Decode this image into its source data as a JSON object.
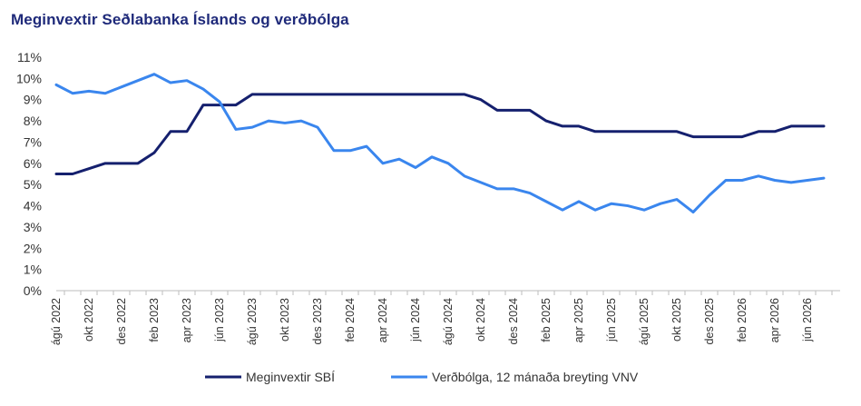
{
  "chart_data": {
    "type": "line",
    "title": "Meginvextir Seðlabanka Íslands og verðbólga",
    "xlabel": "",
    "ylabel": "",
    "ylim": [
      0,
      11
    ],
    "yticks": [
      "0%",
      "1%",
      "2%",
      "3%",
      "4%",
      "5%",
      "6%",
      "7%",
      "8%",
      "9%",
      "10%",
      "11%"
    ],
    "grid": false,
    "legend": "bottom",
    "x": [
      "ágú 2022",
      "sep 2022",
      "okt 2022",
      "nóv 2022",
      "des 2022",
      "jan 2023",
      "feb 2023",
      "mar 2023",
      "apr 2023",
      "maí 2023",
      "jún 2023",
      "júl 2023",
      "ágú 2023",
      "sep 2023",
      "okt 2023",
      "nóv 2023",
      "des 2023",
      "jan 2024",
      "feb 2024",
      "mar 2024",
      "apr 2024",
      "maí 2024",
      "jún 2024",
      "júl 2024",
      "ágú 2024",
      "sep 2024",
      "okt 2024",
      "nóv 2024",
      "des 2024",
      "jan 2025",
      "feb 2025",
      "mar 2025",
      "apr 2025",
      "maí 2025",
      "jún 2025",
      "júl 2025",
      "ágú 2025",
      "sep 2025",
      "okt 2025",
      "nóv 2025",
      "des 2025",
      "jan 2026",
      "feb 2026",
      "mar 2026",
      "apr 2026",
      "maí 2026",
      "jún 2026",
      "júl 2026"
    ],
    "xtick_labels": [
      "ágú 2022",
      "okt 2022",
      "des 2022",
      "feb 2023",
      "apr 2023",
      "jún 2023",
      "ágú 2023",
      "okt 2023",
      "des 2023",
      "feb 2024",
      "apr 2024",
      "jún 2024",
      "ágú 2024",
      "okt 2024",
      "des 2024",
      "feb 2025",
      "apr 2025",
      "jún 2025",
      "ágú 2025",
      "okt 2025",
      "des 2025",
      "feb 2026",
      "apr 2026",
      "jún 2026"
    ],
    "series": [
      {
        "name": "Meginvextir SBÍ",
        "color": "#15206e",
        "values": [
          5.5,
          5.5,
          5.75,
          6.0,
          6.0,
          6.0,
          6.5,
          7.5,
          7.5,
          8.75,
          8.75,
          8.75,
          9.25,
          9.25,
          9.25,
          9.25,
          9.25,
          9.25,
          9.25,
          9.25,
          9.25,
          9.25,
          9.25,
          9.25,
          9.25,
          9.25,
          9.0,
          8.5,
          8.5,
          8.5,
          8.0,
          7.75,
          7.75,
          7.5,
          7.5,
          7.5,
          7.5,
          7.5,
          7.5,
          7.25,
          7.25,
          7.25,
          7.25,
          7.5,
          7.5,
          7.75,
          7.75,
          7.75
        ]
      },
      {
        "name": "Verðbólga, 12 mánaða breyting VNV",
        "color": "#3a86ee",
        "values": [
          9.7,
          9.3,
          9.4,
          9.3,
          9.6,
          9.9,
          10.2,
          9.8,
          9.9,
          9.5,
          8.9,
          7.6,
          7.7,
          8.0,
          7.9,
          8.0,
          7.7,
          6.6,
          6.6,
          6.8,
          6.0,
          6.2,
          5.8,
          6.3,
          6.0,
          5.4,
          5.1,
          4.8,
          4.8,
          4.6,
          4.2,
          3.8,
          4.2,
          3.8,
          4.1,
          4.0,
          3.8,
          4.1,
          4.3,
          3.7,
          4.5,
          5.2,
          5.2,
          5.4,
          5.2,
          5.1,
          5.2,
          5.3
        ]
      }
    ]
  }
}
